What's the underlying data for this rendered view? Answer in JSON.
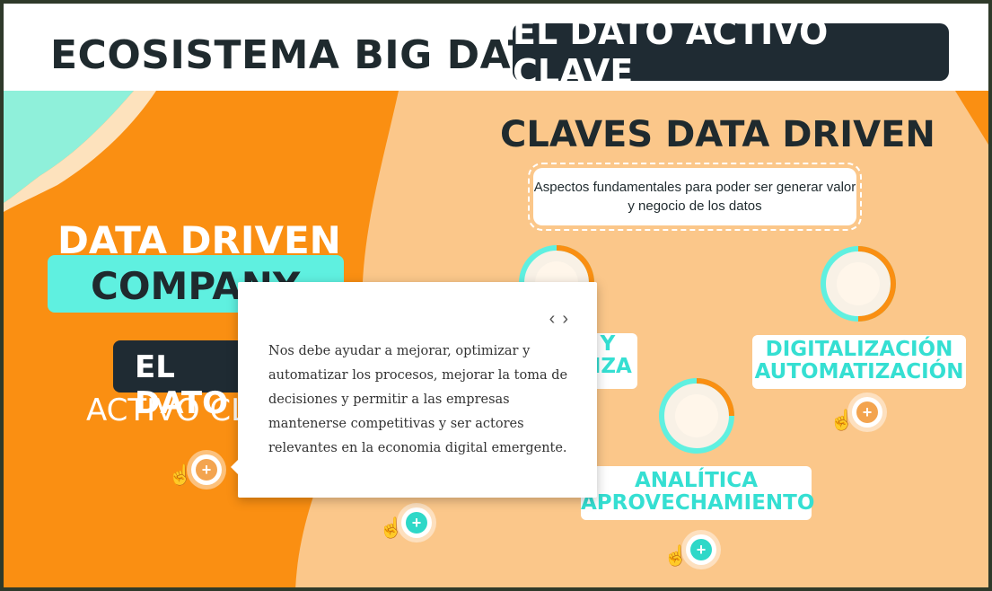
{
  "header": {
    "title": "ECOSISTEMA BIG DATA",
    "badge": "EL DATO ACTIVO CLAVE"
  },
  "left_panel": {
    "title_line1": "DATA DRIVEN",
    "title_line2": "COMPANY",
    "tag_line1": "EL DATO",
    "tag_line2": "ACTIVO CL"
  },
  "right_panel": {
    "title": "CLAVES DATA DRIVEN",
    "subtitle": "Aspectos fundamentales para poder ser generar valor y negocio de los datos",
    "items": [
      {
        "label_line1": "Y",
        "label_line2": "NZA",
        "icon": "chart-icon"
      },
      {
        "label_line1": "DIGITALIZACIÓN",
        "label_line2": "AUTOMATIZACIÓN",
        "icon": "tablet-icon"
      },
      {
        "label_line1": "ANALÍTICA",
        "label_line2": "APROVECHAMIENTO",
        "icon": "analytics-icon"
      }
    ]
  },
  "popup": {
    "prev_glyph": "‹",
    "next_glyph": "›",
    "text": "Nos debe ayudar a mejorar, optimizar y automatizar los procesos, mejorar la toma de decisiones y permitir a las empresas mantenerse competitivas y ser actores relevantes en la economia digital emergente."
  },
  "plus_label": "+",
  "colors": {
    "orange": "#fa8f12",
    "peach": "#fbc78a",
    "teal": "#5ff0e0",
    "dark": "#1f2b33"
  }
}
